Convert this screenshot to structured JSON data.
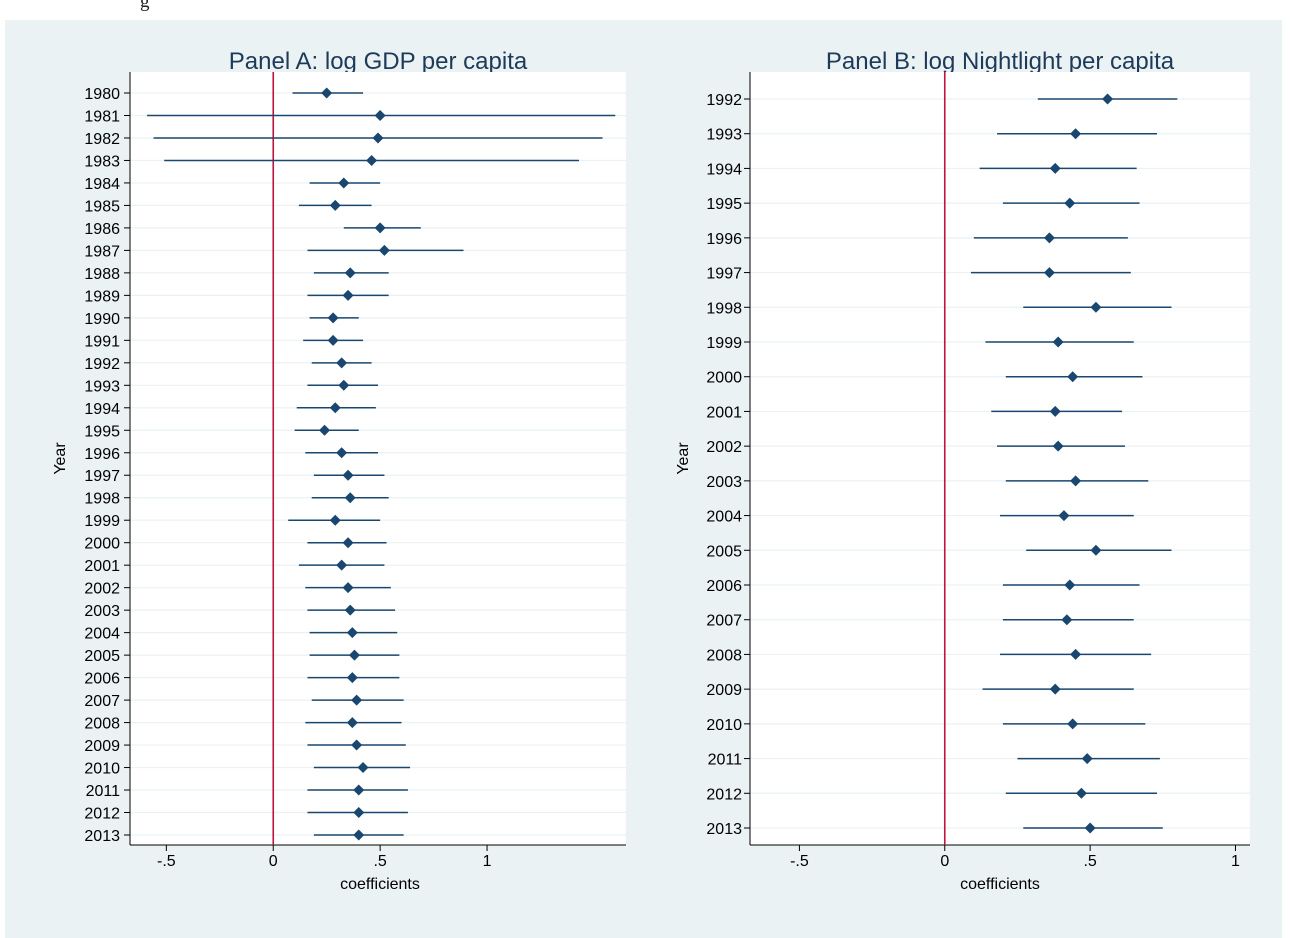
{
  "caption": {
    "visible_text": "g"
  },
  "colors": {
    "figure_bg": "#eaf2f3",
    "plot_bg": "#ffffff",
    "grid": "#eaf2f3",
    "series": "#1a476f",
    "reference_line": "#c0143c"
  },
  "chart_data": [
    {
      "type": "scatter",
      "title": "Panel A: log GDP per capita",
      "xlabel": "coefficients",
      "ylabel": "Year",
      "xticks": [
        "-.5",
        "0",
        ".5",
        "1"
      ],
      "xlim": [
        -0.67,
        1.65
      ],
      "reference_line_x": 0,
      "grid": true,
      "orientation": "horizontal",
      "categories": [
        "1980",
        "1981",
        "1982",
        "1983",
        "1984",
        "1985",
        "1986",
        "1987",
        "1988",
        "1989",
        "1990",
        "1991",
        "1992",
        "1993",
        "1994",
        "1995",
        "1996",
        "1997",
        "1998",
        "1999",
        "2000",
        "2001",
        "2002",
        "2003",
        "2004",
        "2005",
        "2006",
        "2007",
        "2008",
        "2009",
        "2010",
        "2011",
        "2012",
        "2013"
      ],
      "series": [
        {
          "estimate": [
            0.25,
            0.5,
            0.49,
            0.46,
            0.33,
            0.29,
            0.5,
            0.52,
            0.36,
            0.35,
            0.28,
            0.28,
            0.32,
            0.33,
            0.29,
            0.24,
            0.32,
            0.35,
            0.36,
            0.29,
            0.35,
            0.32,
            0.35,
            0.36,
            0.37,
            0.38,
            0.37,
            0.39,
            0.37,
            0.39,
            0.42,
            0.4,
            0.4,
            0.4
          ],
          "ci_low": [
            0.09,
            -0.59,
            -0.56,
            -0.51,
            0.17,
            0.12,
            0.33,
            0.16,
            0.19,
            0.16,
            0.17,
            0.14,
            0.18,
            0.16,
            0.11,
            0.1,
            0.15,
            0.19,
            0.18,
            0.07,
            0.16,
            0.12,
            0.15,
            0.16,
            0.17,
            0.17,
            0.16,
            0.18,
            0.15,
            0.16,
            0.19,
            0.16,
            0.16,
            0.19
          ],
          "ci_high": [
            0.42,
            1.6,
            1.54,
            1.43,
            0.5,
            0.46,
            0.69,
            0.89,
            0.54,
            0.54,
            0.4,
            0.42,
            0.46,
            0.49,
            0.48,
            0.4,
            0.49,
            0.52,
            0.54,
            0.5,
            0.53,
            0.52,
            0.55,
            0.57,
            0.58,
            0.59,
            0.59,
            0.61,
            0.6,
            0.62,
            0.64,
            0.63,
            0.63,
            0.61
          ]
        }
      ]
    },
    {
      "type": "scatter",
      "title": "Panel B: log Nightlight per capita",
      "xlabel": "coefficients",
      "ylabel": "Year",
      "xticks": [
        "-.5",
        "0",
        ".5",
        "1"
      ],
      "xlim": [
        -0.67,
        1.05
      ],
      "reference_line_x": 0,
      "grid": true,
      "orientation": "horizontal",
      "categories": [
        "1992",
        "1993",
        "1994",
        "1995",
        "1996",
        "1997",
        "1998",
        "1999",
        "2000",
        "2001",
        "2002",
        "2003",
        "2004",
        "2005",
        "2006",
        "2007",
        "2008",
        "2009",
        "2010",
        "2011",
        "2012",
        "2013"
      ],
      "series": [
        {
          "estimate": [
            0.56,
            0.45,
            0.38,
            0.43,
            0.36,
            0.36,
            0.52,
            0.39,
            0.44,
            0.38,
            0.39,
            0.45,
            0.41,
            0.52,
            0.43,
            0.42,
            0.45,
            0.38,
            0.44,
            0.49,
            0.47,
            0.5
          ],
          "ci_low": [
            0.32,
            0.18,
            0.12,
            0.2,
            0.1,
            0.09,
            0.27,
            0.14,
            0.21,
            0.16,
            0.18,
            0.21,
            0.19,
            0.28,
            0.2,
            0.2,
            0.19,
            0.13,
            0.2,
            0.25,
            0.21,
            0.27
          ],
          "ci_high": [
            0.8,
            0.73,
            0.66,
            0.67,
            0.63,
            0.64,
            0.78,
            0.65,
            0.68,
            0.61,
            0.62,
            0.7,
            0.65,
            0.78,
            0.67,
            0.65,
            0.71,
            0.65,
            0.69,
            0.74,
            0.73,
            0.75
          ]
        }
      ]
    }
  ]
}
